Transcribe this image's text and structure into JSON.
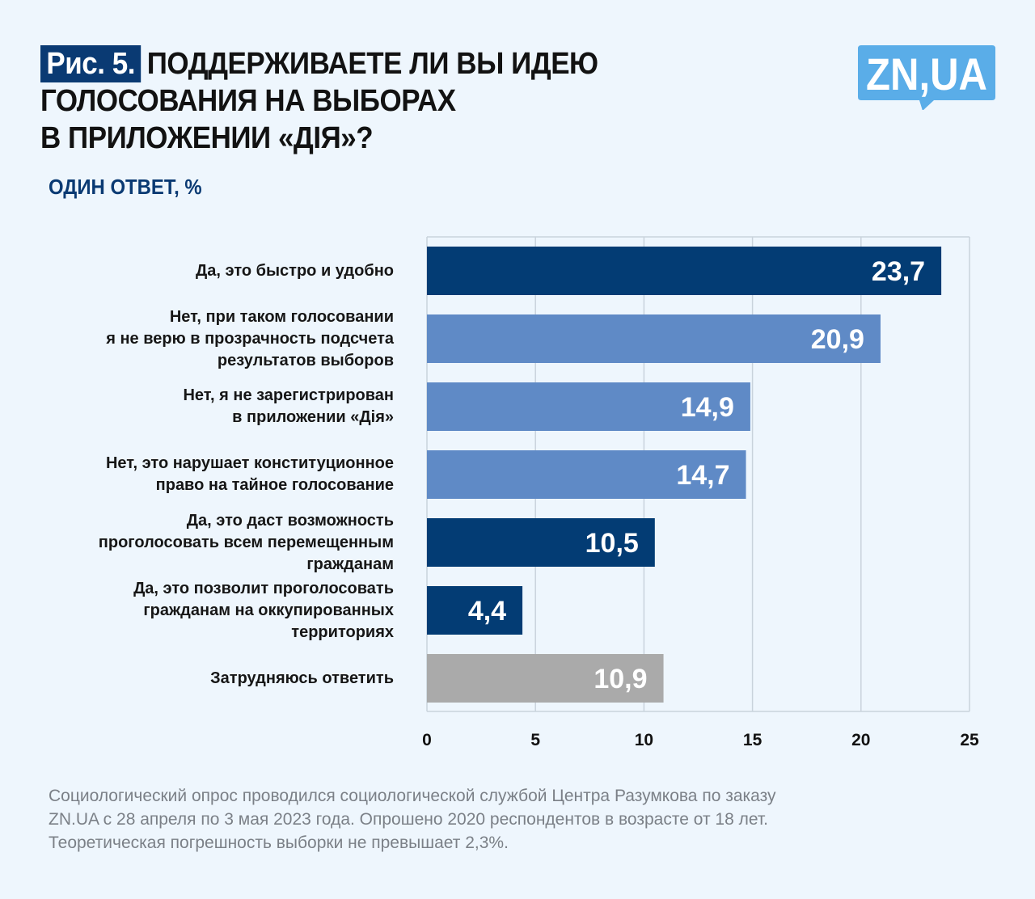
{
  "header": {
    "badge": "Рис. 5.",
    "title_lines": [
      "ПОДДЕРЖИВАЕТЕ ЛИ ВЫ ИДЕЮ",
      "ГОЛОСОВАНИЯ НА ВЫБОРАХ",
      "В ПРИЛОЖЕНИИ «ДІЯ»?"
    ],
    "subtitle": "ОДИН ОТВЕТ, %",
    "logo_text": "ZN,UA"
  },
  "colors": {
    "background": "#eef6fd",
    "dark_blue": "#033c74",
    "light_blue": "#5f8ac6",
    "gray": "#aaaaaa",
    "grid": "#c9d3dc",
    "logo": "#5aade8"
  },
  "chart_data": {
    "type": "bar",
    "orientation": "horizontal",
    "title": "ПОДДЕРЖИВАЕТЕ ЛИ ВЫ ИДЕЮ ГОЛОСОВАНИЯ НА ВЫБОРАХ В ПРИЛОЖЕНИИ «ДІЯ»?",
    "subtitle": "ОДИН ОТВЕТ, %",
    "xlabel": "",
    "ylabel": "",
    "xlim": [
      0,
      25
    ],
    "grid": true,
    "xticks": [
      "0",
      "5",
      "10",
      "15",
      "20",
      "25"
    ],
    "categories": [
      [
        "Да, это быстро и удобно"
      ],
      [
        "Нет, при таком голосовании",
        "я не верю в прозрачность подсчета",
        "результатов выборов"
      ],
      [
        "Нет, я не зарегистрирован",
        "в приложении «Дія»"
      ],
      [
        "Нет, это нарушает конституционное",
        "право на тайное голосование"
      ],
      [
        "Да, это даст возможность",
        "проголосовать всем перемещенным",
        "гражданам"
      ],
      [
        "Да, это позволит проголосовать",
        "гражданам на оккупированных",
        "территориях"
      ],
      [
        "Затрудняюсь ответить"
      ]
    ],
    "values": [
      23.7,
      20.9,
      14.9,
      14.7,
      10.5,
      4.4,
      10.9
    ],
    "labels": [
      "23,7",
      "20,9",
      "14,9",
      "14,7",
      "10,5",
      "4,4",
      "10,9"
    ],
    "bar_groups": [
      "yes",
      "no",
      "no",
      "no",
      "yes",
      "yes",
      "unsure"
    ]
  },
  "footer": {
    "lines": [
      "Социологический опрос проводился социологической службой Центра Разумкова по заказу",
      "ZN.UA с 28 апреля по 3 мая 2023 года. Опрошено 2020 респондентов в возрасте от 18 лет.",
      "Теоретическая погрешность выборки не превышает 2,3%."
    ]
  }
}
